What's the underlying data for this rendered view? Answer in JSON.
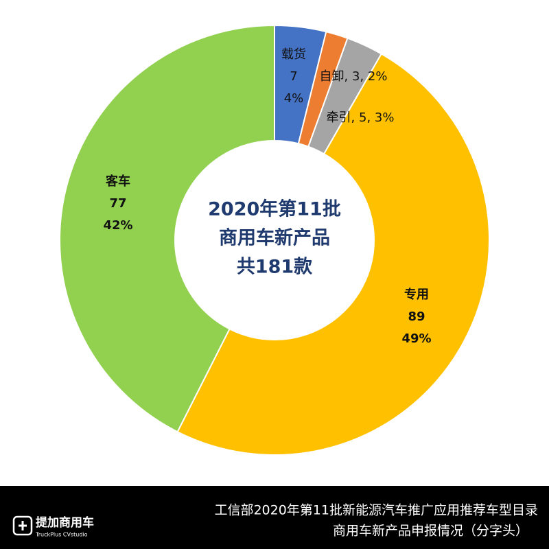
{
  "chart_data": {
    "type": "pie",
    "categories": [
      "载货",
      "自卸",
      "牵引",
      "专用",
      "客车"
    ],
    "values": [
      7,
      3,
      5,
      89,
      77
    ],
    "percent_labels": [
      "4%",
      "2%",
      "3%",
      "49%",
      "42%"
    ],
    "label_separator": ", ",
    "colors": [
      "#4472c4",
      "#ed7d31",
      "#a5a5a5",
      "#ffc000",
      "#92d050"
    ],
    "center_text": [
      "2020年第11批",
      "商用车新产品",
      "共181款"
    ]
  },
  "footer": {
    "logo": "提加商用车",
    "logo_sub": "TruckPlus CVstudio",
    "caption": [
      "工信部2020年第11批新能源汽车推广应用推荐车型目录",
      "商用车新产品申报情况（分字头）"
    ]
  }
}
